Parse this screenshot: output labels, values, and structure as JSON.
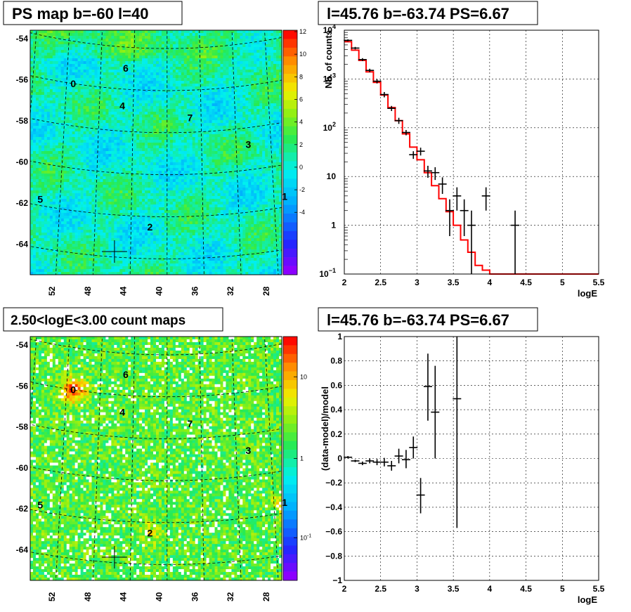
{
  "chart_data": [
    {
      "type": "heatmap",
      "title": "PS map b=-60 l=40",
      "x_ticks": [
        "52",
        "48",
        "44",
        "40",
        "36",
        "32",
        "28"
      ],
      "y_ticks": [
        "-54",
        "-56",
        "-58",
        "-60",
        "-62",
        "-64"
      ],
      "colorbar_ticks": [
        "12",
        "10",
        "8",
        "6",
        "4",
        "2",
        "0",
        "-2",
        "-4"
      ],
      "sources": [
        {
          "label": "0",
          "lon": 51.2,
          "lat": -56.0
        },
        {
          "label": "1",
          "lon": 26.8,
          "lat": -61.5
        },
        {
          "label": "2",
          "lon": 41.9,
          "lat": -62.5
        },
        {
          "label": "3",
          "lon": 30.6,
          "lat": -58.8
        },
        {
          "label": "4",
          "lon": 45.3,
          "lat": -56.8
        },
        {
          "label": "5",
          "lon": 54.2,
          "lat": -61.7
        },
        {
          "label": "6",
          "lon": 45.0,
          "lat": -55.0
        },
        {
          "label": "7",
          "lon": 37.3,
          "lat": -57.3
        }
      ],
      "marker": {
        "l": 45.76,
        "b": -63.74
      }
    },
    {
      "type": "line",
      "title": "l=45.76 b=-63.74 PS=6.67",
      "xlabel": "logE",
      "ylabel": "Nb. of counts",
      "yscale": "log",
      "xlim": [
        2,
        5.5
      ],
      "ylim": [
        0.1,
        10000
      ],
      "x_ticks": [
        "2",
        "2.5",
        "3",
        "3.5",
        "4",
        "4.5",
        "5",
        "5.5"
      ],
      "y_ticks": [
        {
          "v": 0.1,
          "base": "10",
          "exp": "−1"
        },
        {
          "v": 1,
          "base": "1",
          "exp": ""
        },
        {
          "v": 10,
          "base": "10",
          "exp": ""
        },
        {
          "v": 100,
          "base": "10",
          "exp": "2"
        },
        {
          "v": 1000,
          "base": "10",
          "exp": "3"
        },
        {
          "v": 10000,
          "base": "10",
          "exp": "4"
        }
      ],
      "model": {
        "color": "#ff0000",
        "bin_edges": [
          2.0,
          2.1,
          2.2,
          2.3,
          2.4,
          2.5,
          2.6,
          2.7,
          2.8,
          2.9,
          3.0,
          3.1,
          3.2,
          3.3,
          3.4,
          3.5,
          3.6,
          3.7,
          3.8,
          3.9,
          4.0,
          5.5
        ],
        "values": [
          5800,
          3900,
          2400,
          1400,
          850,
          470,
          260,
          140,
          75,
          40,
          22,
          12,
          6.5,
          3.5,
          1.9,
          1.0,
          0.5,
          0.28,
          0.15,
          0.12,
          0.1
        ]
      },
      "data": [
        {
          "x": 2.05,
          "y": 6200,
          "lo": 5900,
          "hi": 6500
        },
        {
          "x": 2.15,
          "y": 4300,
          "lo": 4050,
          "hi": 4550
        },
        {
          "x": 2.25,
          "y": 2500,
          "lo": 2330,
          "hi": 2670
        },
        {
          "x": 2.35,
          "y": 1500,
          "lo": 1380,
          "hi": 1620
        },
        {
          "x": 2.45,
          "y": 900,
          "lo": 810,
          "hi": 990
        },
        {
          "x": 2.55,
          "y": 480,
          "lo": 420,
          "hi": 540
        },
        {
          "x": 2.65,
          "y": 250,
          "lo": 220,
          "hi": 280
        },
        {
          "x": 2.75,
          "y": 140,
          "lo": 120,
          "hi": 160
        },
        {
          "x": 2.85,
          "y": 80,
          "lo": 70,
          "hi": 90
        },
        {
          "x": 2.95,
          "y": 28,
          "lo": 23,
          "hi": 33
        },
        {
          "x": 3.05,
          "y": 33,
          "lo": 27,
          "hi": 39
        },
        {
          "x": 3.15,
          "y": 13,
          "lo": 9.4,
          "hi": 16.6
        },
        {
          "x": 3.25,
          "y": 12,
          "lo": 8.5,
          "hi": 15.5
        },
        {
          "x": 3.35,
          "y": 7,
          "lo": 4.4,
          "hi": 9.6
        },
        {
          "x": 3.45,
          "y": 2,
          "lo": 0.6,
          "hi": 3.4
        },
        {
          "x": 3.55,
          "y": 4,
          "lo": 2.0,
          "hi": 6.0
        },
        {
          "x": 3.65,
          "y": 2,
          "lo": 0.6,
          "hi": 3.4
        },
        {
          "x": 3.75,
          "y": 1,
          "lo": 0.1,
          "hi": 2.0
        },
        {
          "x": 3.95,
          "y": 4,
          "lo": 2.0,
          "hi": 6.0
        },
        {
          "x": 4.35,
          "y": 1,
          "lo": 0.1,
          "hi": 2.0
        }
      ]
    },
    {
      "type": "heatmap",
      "title": "2.50<logE<3.00 count maps",
      "x_ticks": [
        "52",
        "48",
        "44",
        "40",
        "36",
        "32",
        "28"
      ],
      "y_ticks": [
        "-54",
        "-56",
        "-58",
        "-60",
        "-62",
        "-64"
      ],
      "colorbar_ticks": [
        {
          "base": "10",
          "exp": ""
        },
        {
          "base": "1",
          "exp": ""
        },
        {
          "base": "10",
          "exp": "-1"
        }
      ],
      "sources": [
        {
          "label": "0",
          "lon": 51.2,
          "lat": -56.0
        },
        {
          "label": "1",
          "lon": 26.8,
          "lat": -61.5
        },
        {
          "label": "2",
          "lon": 41.9,
          "lat": -62.5
        },
        {
          "label": "3",
          "lon": 30.6,
          "lat": -58.8
        },
        {
          "label": "4",
          "lon": 45.3,
          "lat": -56.8
        },
        {
          "label": "5",
          "lon": 54.2,
          "lat": -61.7
        },
        {
          "label": "6",
          "lon": 45.0,
          "lat": -55.0
        },
        {
          "label": "7",
          "lon": 37.3,
          "lat": -57.3
        }
      ],
      "marker": {
        "l": 45.76,
        "b": -63.74
      }
    },
    {
      "type": "scatter",
      "title": "l=45.76 b=-63.74 PS=6.67",
      "xlabel": "logE",
      "ylabel": "(data-model)/model",
      "xlim": [
        2,
        5.5
      ],
      "ylim": [
        -1,
        1
      ],
      "x_ticks": [
        "2",
        "2.5",
        "3",
        "3.5",
        "4",
        "4.5",
        "5",
        "5.5"
      ],
      "y_ticks": [
        "1",
        "0.8",
        "0.6",
        "0.4",
        "0.2",
        "0",
        "−0.2",
        "−0.4",
        "−0.6",
        "−0.8",
        "−1"
      ],
      "data": [
        {
          "x": 2.05,
          "y": 0.01,
          "lo": 0.0,
          "hi": 0.02
        },
        {
          "x": 2.15,
          "y": -0.02,
          "lo": -0.03,
          "hi": -0.01
        },
        {
          "x": 2.25,
          "y": -0.04,
          "lo": -0.055,
          "hi": -0.025
        },
        {
          "x": 2.35,
          "y": -0.02,
          "lo": -0.04,
          "hi": 0.0
        },
        {
          "x": 2.45,
          "y": -0.03,
          "lo": -0.055,
          "hi": -0.005
        },
        {
          "x": 2.55,
          "y": -0.03,
          "lo": -0.065,
          "hi": 0.005
        },
        {
          "x": 2.65,
          "y": -0.06,
          "lo": -0.1,
          "hi": -0.02
        },
        {
          "x": 2.75,
          "y": 0.02,
          "lo": -0.04,
          "hi": 0.08
        },
        {
          "x": 2.85,
          "y": -0.01,
          "lo": -0.08,
          "hi": 0.07
        },
        {
          "x": 2.95,
          "y": 0.09,
          "lo": 0.0,
          "hi": 0.18
        },
        {
          "x": 3.05,
          "y": -0.3,
          "lo": -0.45,
          "hi": -0.16
        },
        {
          "x": 3.15,
          "y": 0.59,
          "lo": 0.31,
          "hi": 0.86
        },
        {
          "x": 3.25,
          "y": 0.38,
          "lo": 0.0,
          "hi": 0.76
        },
        {
          "x": 3.55,
          "y": 0.49,
          "lo": -0.57,
          "hi": 1.0
        }
      ]
    }
  ]
}
